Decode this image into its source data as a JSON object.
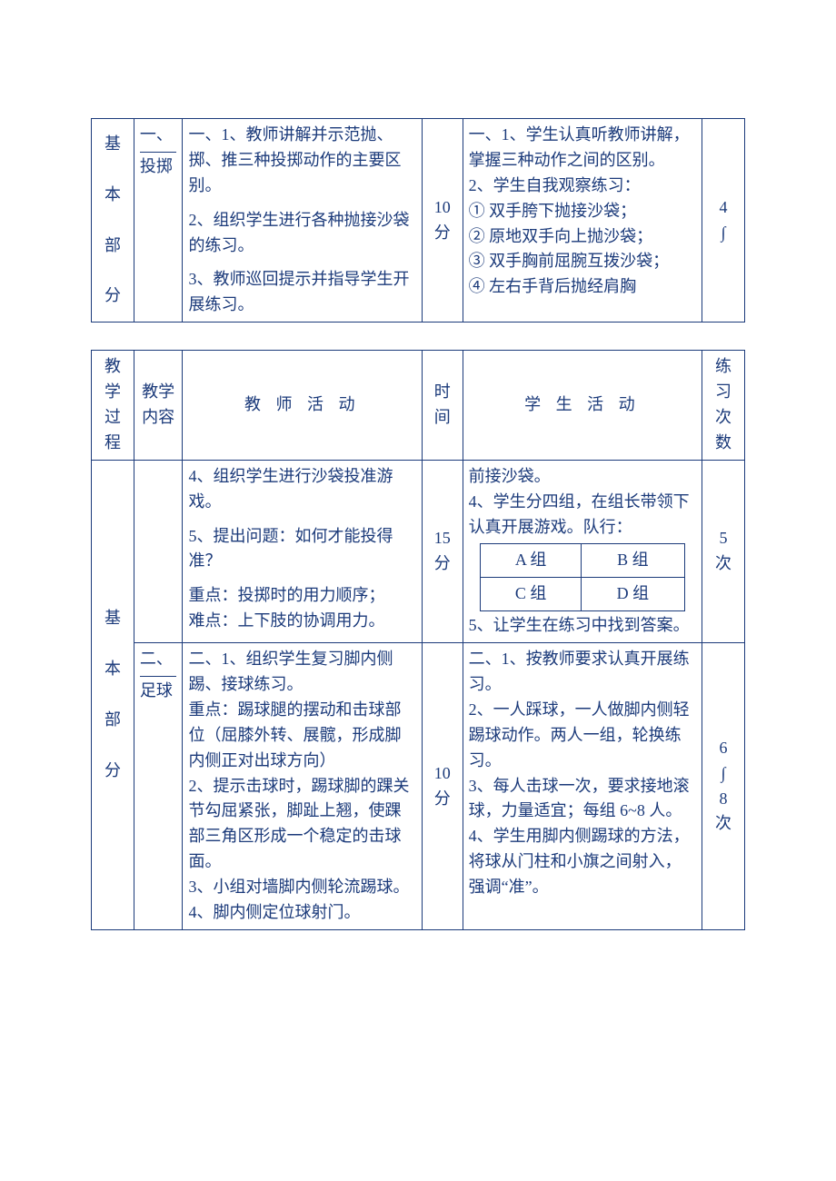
{
  "colors": {
    "text": "#1b3a7a",
    "border": "#1b3a7a",
    "background": "#ffffff"
  },
  "typography": {
    "font_family": "SimSun",
    "base_fontsize_pt": 14,
    "line_height": 1.55
  },
  "table1": {
    "process_label": "基\n\n本\n\n部\n\n分",
    "topic": "一、投掷",
    "teacher": {
      "p1": "一、1、教师讲解并示范抛、掷、推三种投掷动作的主要区别。",
      "p2": "2、组织学生进行各种抛接沙袋的练习。",
      "p3": "3、教师巡回提示并指导学生开展练习。"
    },
    "time": "10分",
    "student": {
      "p1": "一、1、学生认真听教师讲解，掌握三种动作之间的区别。",
      "p2": "2、学生自我观察练习：",
      "li1": "① 双手胯下抛接沙袋；",
      "li2": "② 原地双手向上抛沙袋；",
      "li3": "③ 双手胸前屈腕互拨沙袋；",
      "li4": "④ 左右手背后抛经肩胸"
    },
    "count": "4∫"
  },
  "table2": {
    "header": {
      "c1": "教学过程",
      "c2": "教学内容",
      "c3": "教  师  活  动",
      "c4": "时间",
      "c5": "学  生  活  动",
      "c6": "练习次数"
    },
    "process_label": "基\n\n本\n\n部\n\n分",
    "row1": {
      "topic": "",
      "teacher": {
        "p1": "4、组织学生进行沙袋投准游戏。",
        "p2": "5、提出问题：如何才能投得准？",
        "p3": "重点：投掷时的用力顺序；",
        "p4": "难点：上下肢的协调用力。"
      },
      "time": "15分",
      "student": {
        "p1": "前接沙袋。",
        "p2": "4、学生分四组，在组长带领下认真开展游戏。队行：",
        "grid": {
          "a": "A 组",
          "b": "B 组",
          "c": "C 组",
          "d": "D 组"
        },
        "p3": "5、让学生在练习中找到答案。"
      },
      "count": "5次"
    },
    "row2": {
      "topic": "二、足球",
      "teacher": {
        "p1": "二、1、组织学生复习脚内侧踢、接球练习。",
        "p2": "重点：踢球腿的摆动和击球部位（屈膝外转、展髋，形成脚内侧正对出球方向）",
        "p3": "2、提示击球时，踢球脚的踝关节勾屈紧张，脚趾上翘，使踝部三角区形成一个稳定的击球面。",
        "p4": "3、小组对墙脚内侧轮流踢球。",
        "p5": "4、脚内侧定位球射门。"
      },
      "time": "10分",
      "student": {
        "p1": "二、1、按教师要求认真开展练习。",
        "p2": "2、一人踩球，一人做脚内侧轻踢球动作。两人一组，轮换练习。",
        "p3": "3、每人击球一次，要求接地滚球，力量适宜；每组 6~8 人。",
        "p4": "4、学生用脚内侧踢球的方法，将球从门柱和小旗之间射入，强调“准”。"
      },
      "count": "6∫8次"
    }
  }
}
